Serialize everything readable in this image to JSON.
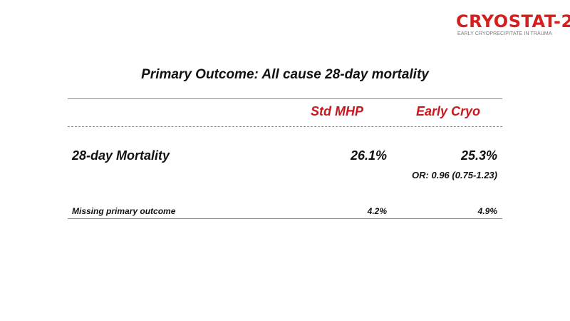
{
  "logo": {
    "name": "CRYOSTAT-2",
    "tagline": "EARLY CRYOPRECIPITATE IN TRAUMA",
    "accent_color": "#d41f1f"
  },
  "title": "Primary Outcome: All cause 28-day mortality",
  "table": {
    "columns": [
      "Std MHP",
      "Early Cryo"
    ],
    "header_color": "#c8171e",
    "rows": [
      {
        "label": "28-day Mortality",
        "values": [
          "26.1%",
          "25.3%"
        ],
        "note": "OR: 0.96 (0.75-1.23)"
      },
      {
        "label": "Missing primary outcome",
        "values": [
          "4.2%",
          "4.9%"
        ]
      }
    ]
  }
}
